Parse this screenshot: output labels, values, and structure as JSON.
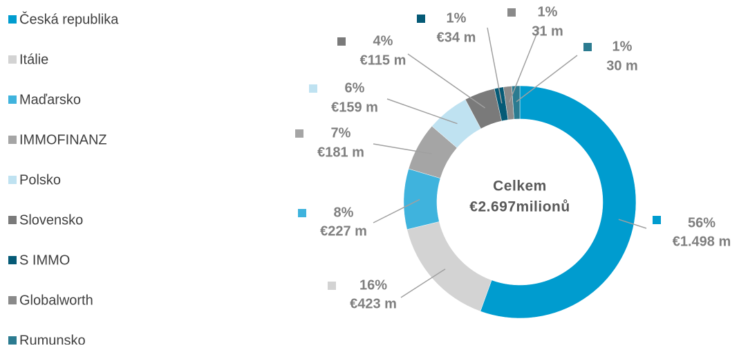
{
  "chart_data": {
    "type": "donut",
    "categories": [
      "Česká republika",
      "Itálie",
      "Maďarsko",
      "IMMOFINANZ",
      "Polsko",
      "Slovensko",
      "S IMMO",
      "Globalworth",
      "Rumunsko"
    ],
    "values": [
      1498,
      423,
      227,
      181,
      159,
      115,
      34,
      31,
      30
    ],
    "value_labels": [
      "€1.498 m",
      "€423 m",
      "€227 m",
      "€181 m",
      "€159 m",
      "€115 m",
      "€34 m",
      "31 m",
      "30 m"
    ],
    "percents": [
      56,
      16,
      8,
      7,
      6,
      4,
      1,
      1,
      1
    ],
    "percent_labels": [
      "56%",
      "16%",
      "8%",
      "7%",
      "6%",
      "4%",
      "1%",
      "1%",
      "1%"
    ],
    "colors": [
      "#009ccf",
      "#d3d3d3",
      "#3fb3dd",
      "#a5a5a5",
      "#bfe2f1",
      "#7a7a7a",
      "#055a76",
      "#8a8a8a",
      "#2b7b90"
    ],
    "center_label": [
      "Celkem",
      "€2.697milionů"
    ]
  }
}
